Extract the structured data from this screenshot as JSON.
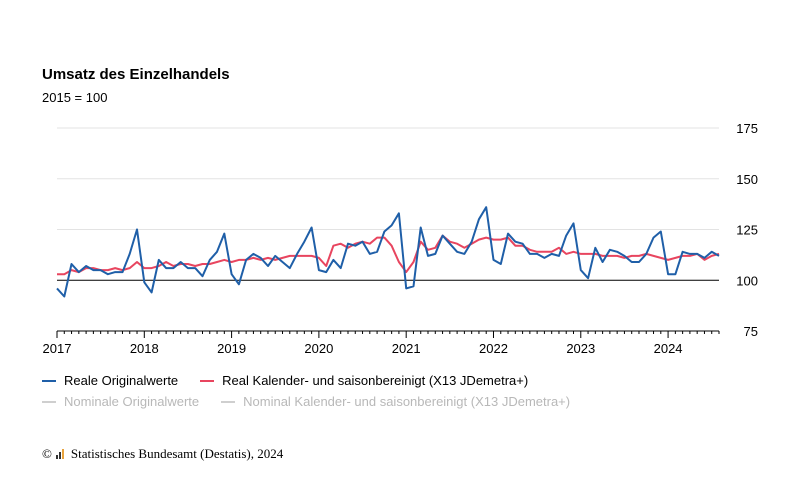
{
  "header": {
    "title": "Umsatz des Einzelhandels",
    "subtitle": "2015 = 100"
  },
  "legend": {
    "active": [
      {
        "label": "Reale Originalwerte",
        "color": "#1f5fa8"
      },
      {
        "label": "Real Kalender- und saisonbereinigt (X13 JDemetra+)",
        "color": "#e8455f"
      }
    ],
    "inactive": [
      {
        "label": "Nominale Originalwerte",
        "color": "#cfcfcf"
      },
      {
        "label": "Nominal Kalender- und saisonbereinigt (X13 JDemetra+)",
        "color": "#cfcfcf"
      }
    ]
  },
  "footer": {
    "copyright": "©",
    "source": "Statistisches Bundesamt (Destatis), 2024"
  },
  "chart_data": {
    "type": "line",
    "x_start": "2017-01",
    "x_end": "2024-08",
    "xticks": [
      "2017",
      "2018",
      "2019",
      "2020",
      "2021",
      "2022",
      "2023",
      "2024"
    ],
    "ylim": [
      75,
      175
    ],
    "yticks": [
      75,
      100,
      125,
      150,
      175
    ],
    "baseline": 100,
    "grid": true,
    "series": [
      {
        "name": "Reale Originalwerte",
        "color": "#1f5fa8",
        "values": [
          96,
          92,
          108,
          104,
          107,
          105,
          105,
          103,
          104,
          104,
          113,
          125,
          99,
          94,
          110,
          106,
          106,
          109,
          106,
          106,
          102,
          110,
          114,
          123,
          103,
          98,
          110,
          113,
          111,
          107,
          112,
          109,
          106,
          113,
          119,
          126,
          105,
          104,
          110,
          106,
          118,
          117,
          119,
          113,
          114,
          124,
          127,
          133,
          96,
          97,
          126,
          112,
          113,
          122,
          118,
          114,
          113,
          119,
          130,
          136,
          110,
          108,
          123,
          119,
          118,
          113,
          113,
          111,
          113,
          112,
          122,
          128,
          105,
          101,
          116,
          109,
          115,
          114,
          112,
          109,
          109,
          113,
          121,
          124,
          103,
          103,
          114,
          113,
          113,
          111,
          114,
          112
        ]
      },
      {
        "name": "Real Kalender- und saisonbereinigt (X13 JDemetra+)",
        "color": "#e8455f",
        "values": [
          103,
          103,
          105,
          104,
          106,
          106,
          105,
          105,
          106,
          105,
          106,
          109,
          106,
          106,
          107,
          109,
          107,
          108,
          108,
          107,
          108,
          108,
          109,
          110,
          109,
          110,
          110,
          111,
          110,
          111,
          110,
          111,
          112,
          112,
          112,
          112,
          111,
          107,
          117,
          118,
          116,
          118,
          119,
          118,
          121,
          121,
          117,
          109,
          104,
          109,
          119,
          115,
          116,
          122,
          119,
          118,
          116,
          118,
          120,
          121,
          120,
          120,
          121,
          117,
          117,
          115,
          114,
          114,
          114,
          116,
          113,
          114,
          113,
          113,
          113,
          112,
          112,
          112,
          111,
          112,
          112,
          113,
          112,
          111,
          110,
          111,
          112,
          112,
          113,
          110,
          112,
          113
        ]
      }
    ]
  }
}
